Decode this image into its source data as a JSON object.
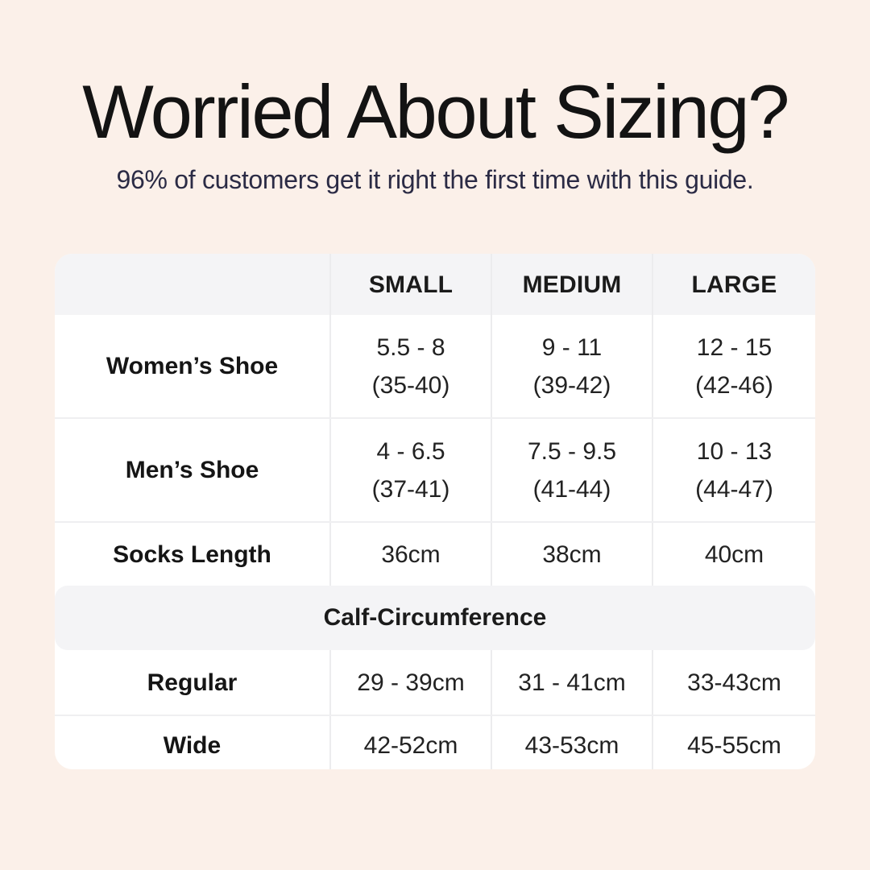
{
  "page": {
    "title": "Worried About Sizing?",
    "subtitle": "96% of customers get it right the first time with this guide."
  },
  "sizing_table": {
    "columns": [
      "",
      "SMALL",
      "MEDIUM",
      "LARGE"
    ],
    "rows": [
      {
        "label": "Women’s Shoe",
        "cells": [
          [
            "5.5 - 8",
            "(35-40)"
          ],
          [
            "9 - 11",
            "(39-42)"
          ],
          [
            "12 - 15",
            "(42-46)"
          ]
        ]
      },
      {
        "label": "Men’s Shoe",
        "cells": [
          [
            "4 - 6.5",
            "(37-41)"
          ],
          [
            "7.5 - 9.5",
            "(41-44)"
          ],
          [
            "10 - 13",
            "(44-47)"
          ]
        ]
      },
      {
        "label": "Socks Length",
        "cells": [
          [
            "36cm"
          ],
          [
            "38cm"
          ],
          [
            "40cm"
          ]
        ]
      }
    ],
    "calf_section": {
      "header": "Calf-Circumference",
      "rows": [
        {
          "label": "Regular",
          "cells": [
            [
              "29 - 39cm"
            ],
            [
              "31 - 41cm"
            ],
            [
              "33-43cm"
            ]
          ]
        },
        {
          "label": "Wide",
          "cells": [
            [
              "42-52cm"
            ],
            [
              "43-53cm"
            ],
            [
              "45-55cm"
            ]
          ]
        }
      ]
    }
  },
  "colors": {
    "background": "#fbf0e9",
    "card": "#ffffff",
    "header_band": "#f4f4f6",
    "divider": "#ececee",
    "title_text": "#131313",
    "subtitle_text": "#2b2b45",
    "table_text": "#222222"
  },
  "chart_data": {
    "type": "table",
    "title": "Worried About Sizing?",
    "columns": [
      "",
      "SMALL",
      "MEDIUM",
      "LARGE"
    ],
    "rows": [
      [
        "Women’s Shoe",
        "5.5 - 8 (35-40)",
        "9 - 11 (39-42)",
        "12 - 15 (42-46)"
      ],
      [
        "Men’s Shoe",
        "4 - 6.5 (37-41)",
        "7.5 - 9.5 (41-44)",
        "10 - 13 (44-47)"
      ],
      [
        "Socks Length",
        "36cm",
        "38cm",
        "40cm"
      ],
      [
        "Calf-Circumference (section header)",
        "",
        "",
        ""
      ],
      [
        "Regular",
        "29 - 39cm",
        "31 - 41cm",
        "33-43cm"
      ],
      [
        "Wide",
        "42-52cm",
        "43-53cm",
        "45-55cm"
      ]
    ]
  }
}
